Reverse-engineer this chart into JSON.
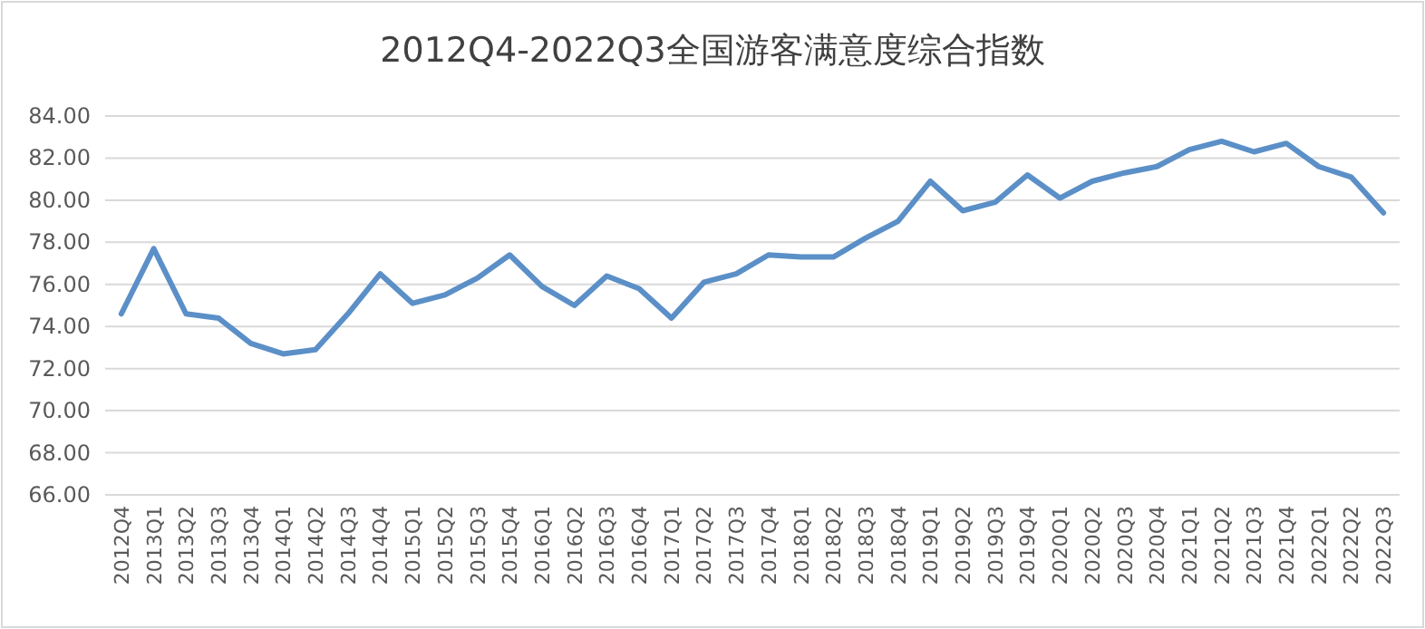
{
  "chart_data": {
    "type": "line",
    "title": "2012Q4-2022Q3全国游客满意度综合指数",
    "categories": [
      "2012Q4",
      "2013Q1",
      "2013Q2",
      "2013Q3",
      "2013Q4",
      "2014Q1",
      "2014Q2",
      "2014Q3",
      "2014Q4",
      "2015Q1",
      "2015Q2",
      "2015Q3",
      "2015Q4",
      "2016Q1",
      "2016Q2",
      "2016Q3",
      "2016Q4",
      "2017Q1",
      "2017Q2",
      "2017Q3",
      "2017Q4",
      "2018Q1",
      "2018Q2",
      "2018Q3",
      "2018Q4",
      "2019Q1",
      "2019Q2",
      "2019Q3",
      "2019Q4",
      "2020Q1",
      "2020Q2",
      "2020Q3",
      "2020Q4",
      "2021Q1",
      "2021Q2",
      "2021Q3",
      "2021Q4",
      "2022Q1",
      "2022Q2",
      "2022Q3"
    ],
    "series": [
      {
        "color": "#5b8fc7",
        "values": [
          74.6,
          77.7,
          74.6,
          74.4,
          73.2,
          72.7,
          72.9,
          74.6,
          76.5,
          75.1,
          75.5,
          76.3,
          77.4,
          75.9,
          75.0,
          76.4,
          75.8,
          74.4,
          76.1,
          76.5,
          77.4,
          77.3,
          77.3,
          78.2,
          79.0,
          80.9,
          79.5,
          79.9,
          81.2,
          80.1,
          80.9,
          81.3,
          81.6,
          82.4,
          82.8,
          82.3,
          82.7,
          81.6,
          81.1,
          79.4
        ]
      }
    ],
    "ylim": [
      66,
      84
    ],
    "yticks": [
      {
        "value": 66,
        "label": "66.00"
      },
      {
        "value": 68,
        "label": "68.00"
      },
      {
        "value": 70,
        "label": "70.00"
      },
      {
        "value": 72,
        "label": "72.00"
      },
      {
        "value": 74,
        "label": "74.00"
      },
      {
        "value": 76,
        "label": "76.00"
      },
      {
        "value": 78,
        "label": "78.00"
      },
      {
        "value": 80,
        "label": "80.00"
      },
      {
        "value": 82,
        "label": "82.00"
      },
      {
        "value": 84,
        "label": "84.00"
      }
    ],
    "grid": "y",
    "marker": "none",
    "line_style": "solid"
  }
}
